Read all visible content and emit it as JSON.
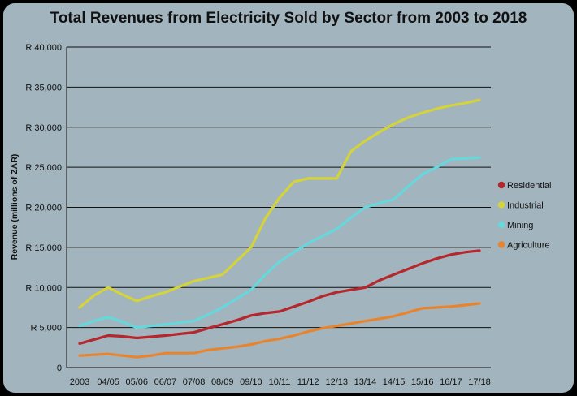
{
  "chart_data": {
    "type": "line",
    "title": "Total Revenues from Electricity Sold by Sector from 2003 to 2018",
    "xlabel": "",
    "ylabel": "Revenue (millions of ZAR)",
    "ylim": [
      0,
      40000
    ],
    "yticks": [
      0,
      5000,
      10000,
      15000,
      20000,
      25000,
      30000,
      35000,
      40000
    ],
    "ytick_labels": [
      "0",
      "R 5,000",
      "R 10,000",
      "R 15,000",
      "R 20,000",
      "R 25,000",
      "R 30,000",
      "R 35,000",
      "R 40,000"
    ],
    "categories": [
      "2003",
      "04/05",
      "05/06",
      "06/07",
      "07/08",
      "08/09",
      "09/10",
      "10/11",
      "11/12",
      "12/13",
      "13/14",
      "14/15",
      "15/16",
      "16/17",
      "17/18"
    ],
    "grid": true,
    "legend_position": "right",
    "series": [
      {
        "name": "Residential",
        "color": "#b5262d",
        "x": [
          0,
          0.5,
          1,
          1.5,
          2,
          2.5,
          3,
          3.5,
          4,
          4.5,
          5,
          5.5,
          6,
          6.5,
          7,
          7.5,
          8,
          8.5,
          9,
          9.5,
          10,
          10.5,
          11,
          11.5,
          12,
          12.5,
          13,
          13.5,
          14
        ],
        "values": [
          3000,
          3500,
          4000,
          3900,
          3700,
          3850,
          4000,
          4200,
          4400,
          4900,
          5400,
          5900,
          6500,
          6800,
          7000,
          7600,
          8200,
          8900,
          9400,
          9700,
          10000,
          10900,
          11600,
          12300,
          13000,
          13600,
          14100,
          14400,
          14600
        ]
      },
      {
        "name": "Industrial",
        "color": "#d4d43a",
        "x": [
          0,
          0.5,
          1,
          1.5,
          2,
          2.5,
          3,
          3.5,
          4,
          4.5,
          5,
          5.5,
          6,
          6.5,
          7,
          7.5,
          8,
          8.5,
          9,
          9.5,
          10,
          10.5,
          11,
          11.5,
          12,
          12.5,
          13,
          13.5,
          14
        ],
        "values": [
          7500,
          9000,
          10000,
          9100,
          8300,
          8900,
          9400,
          10100,
          10800,
          11200,
          11600,
          13300,
          15000,
          18600,
          21200,
          23200,
          23600,
          23600,
          23600,
          27000,
          28300,
          29400,
          30400,
          31200,
          31800,
          32300,
          32700,
          33000,
          33400
        ]
      },
      {
        "name": "Mining",
        "color": "#66d8dc",
        "x": [
          0,
          0.5,
          1,
          1.5,
          2,
          2.5,
          3,
          3.5,
          4,
          4.5,
          5,
          5.5,
          6,
          6.5,
          7,
          7.5,
          8,
          8.5,
          9,
          9.5,
          10,
          10.5,
          11,
          11.5,
          12,
          12.5,
          13,
          13.5,
          14
        ],
        "values": [
          5200,
          5800,
          6300,
          5700,
          5000,
          5200,
          5400,
          5600,
          5800,
          6600,
          7500,
          8600,
          9700,
          11600,
          13200,
          14400,
          15500,
          16400,
          17300,
          18700,
          20000,
          20500,
          21000,
          22600,
          24100,
          25000,
          26000,
          26100,
          26200
        ]
      },
      {
        "name": "Agriculture",
        "color": "#e8832e",
        "x": [
          0,
          0.5,
          1,
          1.5,
          2,
          2.5,
          3,
          3.5,
          4,
          4.5,
          5,
          5.5,
          6,
          6.5,
          7,
          7.5,
          8,
          8.5,
          9,
          9.5,
          10,
          10.5,
          11,
          11.5,
          12,
          12.5,
          13,
          13.5,
          14
        ],
        "values": [
          1500,
          1600,
          1700,
          1500,
          1300,
          1500,
          1800,
          1800,
          1800,
          2200,
          2400,
          2600,
          2900,
          3300,
          3600,
          4000,
          4500,
          4900,
          5200,
          5500,
          5800,
          6100,
          6400,
          6900,
          7400,
          7500,
          7600,
          7800,
          8000
        ]
      }
    ]
  }
}
